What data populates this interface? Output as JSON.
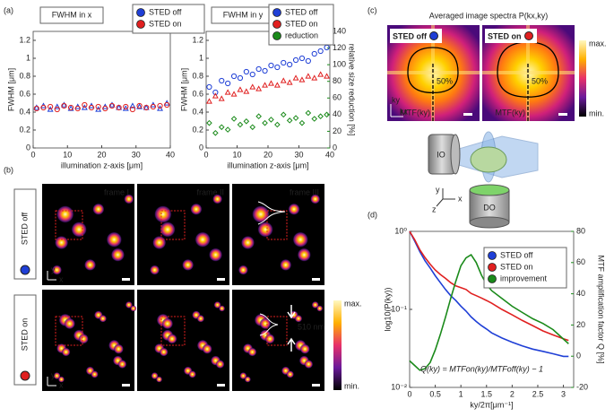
{
  "chart_data": [
    {
      "type": "scatter",
      "title": "FWHM in x",
      "xlabel": "illumination z-axis [μm]",
      "ylabel": "FWHM [μm]",
      "x": [
        1,
        3,
        5,
        7,
        9,
        11,
        13,
        15,
        17,
        19,
        21,
        23,
        25,
        27,
        29,
        31,
        33,
        35,
        37,
        39
      ],
      "series": [
        {
          "name": "STED off",
          "color": "#1f3fd6",
          "marker": "triangle",
          "values": [
            0.45,
            0.47,
            0.43,
            0.46,
            0.48,
            0.44,
            0.46,
            0.45,
            0.47,
            0.43,
            0.46,
            0.48,
            0.45,
            0.44,
            0.47,
            0.46,
            0.45,
            0.48,
            0.44,
            0.5
          ]
        },
        {
          "name": "STED on",
          "color": "#e02020",
          "marker": "circle",
          "values": [
            0.44,
            0.45,
            0.46,
            0.43,
            0.47,
            0.45,
            0.44,
            0.48,
            0.45,
            0.46,
            0.44,
            0.47,
            0.45,
            0.46,
            0.43,
            0.47,
            0.45,
            0.46,
            0.47,
            0.48
          ]
        }
      ],
      "xlim": [
        0,
        40
      ],
      "xticks": [
        0,
        10,
        20,
        30,
        40
      ],
      "ylim": [
        0,
        1.3
      ],
      "yticks": [
        0,
        0.2,
        0.4,
        0.6,
        0.8,
        1,
        1.2
      ],
      "legend": "upper right"
    },
    {
      "type": "scatter",
      "title": "FWHM in y",
      "xlabel": "illumination z-axis [μm]",
      "ylabel": "FWHM [μm]",
      "y2label": "relative size reduction [%]",
      "y2_color": "#1a8a1a",
      "x": [
        1,
        3,
        5,
        7,
        9,
        11,
        13,
        15,
        17,
        19,
        21,
        23,
        25,
        27,
        29,
        31,
        33,
        35,
        37,
        39
      ],
      "series": [
        {
          "name": "STED off",
          "color": "#1f3fd6",
          "marker": "circle",
          "values": [
            0.68,
            0.62,
            0.75,
            0.72,
            0.8,
            0.78,
            0.85,
            0.82,
            0.88,
            0.86,
            0.92,
            0.9,
            0.95,
            0.93,
            0.98,
            1.0,
            0.97,
            1.05,
            1.08,
            1.12
          ]
        },
        {
          "name": "STED on",
          "color": "#e02020",
          "marker": "triangle",
          "values": [
            0.52,
            0.58,
            0.55,
            0.62,
            0.6,
            0.65,
            0.63,
            0.68,
            0.66,
            0.7,
            0.72,
            0.7,
            0.75,
            0.73,
            0.78,
            0.76,
            0.8,
            0.78,
            0.82,
            0.8
          ]
        },
        {
          "name": "reduction",
          "color": "#1a8a1a",
          "marker": "diamond",
          "axis": "y2",
          "values": [
            30,
            18,
            25,
            22,
            35,
            28,
            32,
            25,
            38,
            30,
            34,
            28,
            40,
            33,
            36,
            30,
            42,
            35,
            38,
            40
          ]
        }
      ],
      "xlim": [
        0,
        40
      ],
      "xticks": [
        0,
        10,
        20,
        30,
        40
      ],
      "ylim": [
        0,
        1.3
      ],
      "yticks": [
        0,
        0.2,
        0.4,
        0.6,
        0.8,
        1,
        1.2
      ],
      "y2lim": [
        0,
        140
      ],
      "y2ticks": [
        0,
        20,
        40,
        60,
        80,
        100,
        120,
        140
      ],
      "legend": "upper right"
    },
    {
      "type": "line",
      "xlabel": "ky/2π[μm⁻¹]",
      "ylabel": "log10(P(ky))",
      "ylabel_color": "#1f3fd6",
      "y2label": "MTF amplification factor Q [%]",
      "y2_color": "#1a8a1a",
      "annotation": "Q(ky) = MTFon(ky)/MTFoff(ky) − 1",
      "x": [
        0,
        0.1,
        0.2,
        0.3,
        0.4,
        0.5,
        0.6,
        0.7,
        0.8,
        0.9,
        1.0,
        1.1,
        1.2,
        1.3,
        1.4,
        1.5,
        1.6,
        1.8,
        2.0,
        2.2,
        2.4,
        2.6,
        2.8,
        3.0,
        3.1
      ],
      "series": [
        {
          "name": "STED off",
          "color": "#1f3fd6",
          "values": [
            1,
            0.75,
            0.55,
            0.42,
            0.34,
            0.27,
            0.22,
            0.18,
            0.15,
            0.13,
            0.11,
            0.095,
            0.08,
            0.07,
            0.062,
            0.056,
            0.05,
            0.043,
            0.038,
            0.034,
            0.031,
            0.029,
            0.027,
            0.025,
            0.025
          ]
        },
        {
          "name": "STED on",
          "color": "#e02020",
          "values": [
            1,
            0.78,
            0.58,
            0.46,
            0.38,
            0.32,
            0.28,
            0.25,
            0.22,
            0.2,
            0.19,
            0.18,
            0.16,
            0.15,
            0.14,
            0.13,
            0.12,
            0.1,
            0.085,
            0.072,
            0.062,
            0.053,
            0.047,
            0.042,
            0.04
          ]
        },
        {
          "name": "improvement",
          "color": "#1a8a1a",
          "axis": "y2",
          "values": [
            -3,
            -6,
            -9,
            -8,
            -4,
            4,
            14,
            25,
            37,
            48,
            58,
            63,
            65,
            60,
            52,
            46,
            42,
            37,
            32,
            28,
            24,
            21,
            17,
            11,
            8
          ]
        }
      ],
      "xlim": [
        0,
        3.2
      ],
      "xticks": [
        0,
        0.5,
        1,
        1.5,
        2,
        2.5,
        3
      ],
      "ylog": true,
      "ylim": [
        0.01,
        1
      ],
      "yticks": [
        {
          "value": 1,
          "label": "10⁰"
        },
        {
          "value": 0.1,
          "label": "10⁻¹"
        },
        {
          "value": 0.01,
          "label": "10⁻²"
        }
      ],
      "y2lim": [
        -20,
        80
      ],
      "y2ticks": [
        -20,
        0,
        20,
        40,
        60,
        80
      ],
      "legend": "upper right"
    }
  ],
  "figure": {
    "panel_labels": [
      "(a)",
      "(b)",
      "(c)",
      "(d)"
    ],
    "b": {
      "frames": [
        "frame I",
        "frame II",
        "frame III"
      ],
      "rows": [
        "STED off",
        "STED on"
      ],
      "colorbar": [
        "max.",
        "min."
      ],
      "scale_text": "510 nm",
      "axes": [
        "y",
        "x"
      ]
    },
    "c": {
      "title": "Averaged image spectra P(kx,ky)",
      "images": [
        "STED off",
        "STED on"
      ],
      "contour_label": "50%",
      "mtf_label": "MTF(ky)",
      "colorbar": [
        "max.",
        "min."
      ],
      "axes": [
        "ky",
        "kx"
      ],
      "objectives": [
        "IO",
        "DO"
      ],
      "stage_axes": [
        "y",
        "x",
        "z"
      ]
    }
  }
}
